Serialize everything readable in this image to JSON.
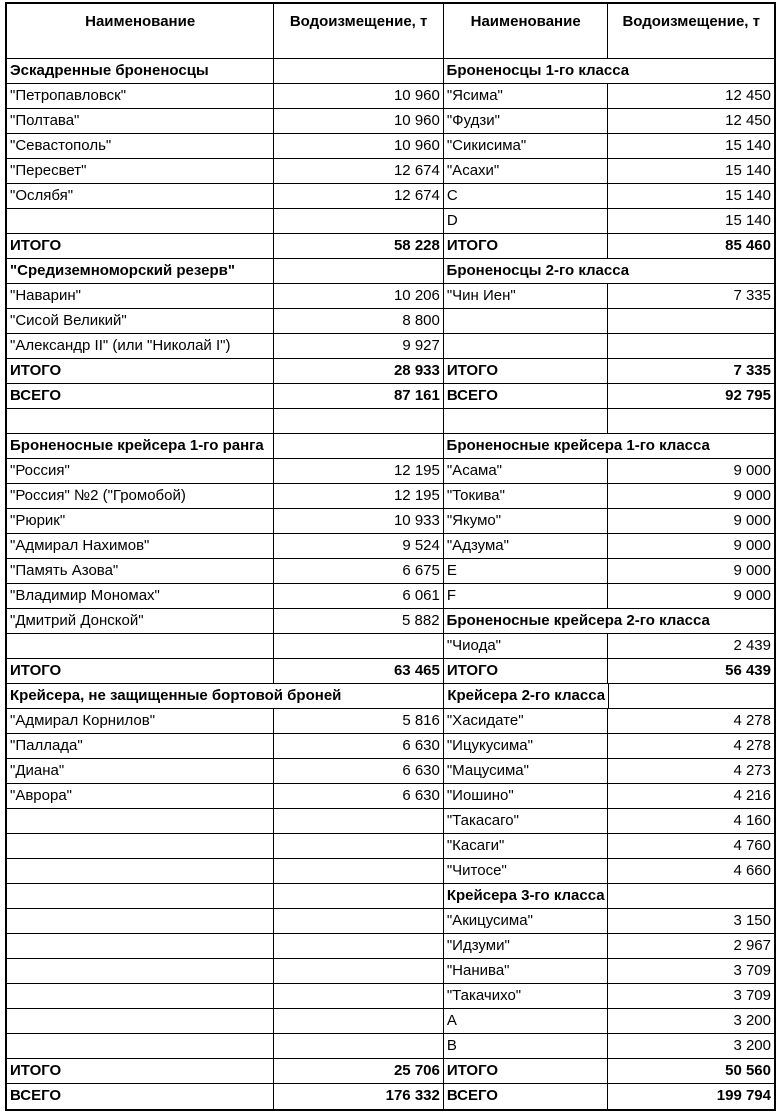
{
  "header": [
    "Наименование",
    "Водоизмещение, т",
    "Наименование",
    "Водоизмещение, т"
  ],
  "rows": [
    {
      "l": "Эскадренные броненосцы",
      "lv": "",
      "r": "Броненосцы 1-го класса",
      "rv": "",
      "lb": true,
      "rb": true
    },
    {
      "l": "\"Петропавловск\"",
      "lv": "10 960",
      "r": "\"Ясима\"",
      "rv": "12 450"
    },
    {
      "l": "\"Полтава\"",
      "lv": "10 960",
      "r": "\"Фудзи\"",
      "rv": "12 450"
    },
    {
      "l": "\"Севастополь\"",
      "lv": "10 960",
      "r": "\"Сикисима\"",
      "rv": "15 140"
    },
    {
      "l": "\"Пересвет\"",
      "lv": "12 674",
      "r": "\"Асахи\"",
      "rv": "15 140"
    },
    {
      "l": "\"Ослябя\"",
      "lv": "12 674",
      "r": "C",
      "rv": "15 140"
    },
    {
      "l": "",
      "lv": "",
      "r": "D",
      "rv": "15 140"
    },
    {
      "l": "ИТОГО",
      "lv": "58 228",
      "r": "ИТОГО",
      "rv": "85 460",
      "lb": true,
      "rb": true
    },
    {
      "l": "\"Средиземноморский резерв\"",
      "lv": "",
      "r": "Броненосцы 2-го класса",
      "rv": "",
      "lb": true,
      "rb": true
    },
    {
      "l": "\"Наварин\"",
      "lv": "10 206",
      "r": "\"Чин Иен\"",
      "rv": "7 335"
    },
    {
      "l": "\"Сисой Великий\"",
      "lv": "8 800",
      "r": "",
      "rv": ""
    },
    {
      "l": "\"Александр II\" (или \"Николай I\")",
      "lv": "9 927",
      "r": "",
      "rv": ""
    },
    {
      "l": "ИТОГО",
      "lv": "28 933",
      "r": "ИТОГО",
      "rv": "7 335",
      "lb": true,
      "rb": true
    },
    {
      "l": "ВСЕГО",
      "lv": "87 161",
      "r": "ВСЕГО",
      "rv": "92 795",
      "lb": true,
      "rb": true
    },
    {
      "l": "",
      "lv": "",
      "r": "",
      "rv": ""
    },
    {
      "l": "Броненосные крейсера 1-го ранга",
      "lv": "",
      "r": "Броненосные крейсера 1-го класса",
      "rv": "",
      "lb": true,
      "rb": true
    },
    {
      "l": "\"Россия\"",
      "lv": "12 195",
      "r": "\"Асама\"",
      "rv": "9 000"
    },
    {
      "l": "\"Россия\" №2 (\"Громобой)",
      "lv": "12 195",
      "r": "\"Токива\"",
      "rv": "9 000"
    },
    {
      "l": "\"Рюрик\"",
      "lv": "10 933",
      "r": "\"Якумо\"",
      "rv": "9 000"
    },
    {
      "l": "\"Адмирал Нахимов\"",
      "lv": "9 524",
      "r": "\"Адзума\"",
      "rv": "9 000"
    },
    {
      "l": "\"Память Азова\"",
      "lv": "6 675",
      "r": "E",
      "rv": "9 000"
    },
    {
      "l": "\"Владимир Мономах\"",
      "lv": "6 061",
      "r": "F",
      "rv": "9 000"
    },
    {
      "l": "\"Дмитрий Донской\"",
      "lv": "5 882",
      "r": "Броненосные крейсера 2-го класса",
      "rv": "",
      "rb": true
    },
    {
      "l": "",
      "lv": "",
      "r": "\"Чиода\"",
      "rv": "2 439"
    },
    {
      "l": "ИТОГО",
      "lv": "63 465",
      "r": "ИТОГО",
      "rv": "56 439",
      "lb": true,
      "rb": true
    },
    {
      "l": "Крейсера, не защищенные бортовой броней",
      "lv": "",
      "r": "Крейсера 2-го класса",
      "rv": "",
      "lb": true,
      "rb": true
    },
    {
      "l": "\"Адмирал Корнилов\"",
      "lv": "5 816",
      "r": "\"Хасидате\"",
      "rv": "4 278"
    },
    {
      "l": "\"Паллада\"",
      "lv": "6 630",
      "r": "\"Ицукусима\"",
      "rv": "4 278"
    },
    {
      "l": "\"Диана\"",
      "lv": "6 630",
      "r": "\"Мацусима\"",
      "rv": "4 273"
    },
    {
      "l": "\"Аврора\"",
      "lv": "6 630",
      "r": "\"Иошино\"",
      "rv": "4 216"
    },
    {
      "l": "",
      "lv": "",
      "r": "\"Такасаго\"",
      "rv": "4 160"
    },
    {
      "l": "",
      "lv": "",
      "r": "\"Касаги\"",
      "rv": "4 760"
    },
    {
      "l": "",
      "lv": "",
      "r": "\"Читосе\"",
      "rv": "4 660"
    },
    {
      "l": "",
      "lv": "",
      "r": "Крейсера 3-го класса",
      "rv": "",
      "rb": true
    },
    {
      "l": "",
      "lv": "",
      "r": "\"Акицусима\"",
      "rv": "3 150"
    },
    {
      "l": "",
      "lv": "",
      "r": "\"Идзуми\"",
      "rv": "2 967"
    },
    {
      "l": "",
      "lv": "",
      "r": "\"Нанива\"",
      "rv": "3 709"
    },
    {
      "l": "",
      "lv": "",
      "r": "\"Такачихо\"",
      "rv": "3 709"
    },
    {
      "l": "",
      "lv": "",
      "r": "A",
      "rv": "3 200"
    },
    {
      "l": "",
      "lv": "",
      "r": "B",
      "rv": "3 200"
    },
    {
      "l": "ИТОГО",
      "lv": "25 706",
      "r": "ИТОГО",
      "rv": "50 560",
      "lb": true,
      "rb": true
    },
    {
      "l": "ВСЕГО",
      "lv": "176 332",
      "r": "ВСЕГО",
      "rv": "199 794",
      "lb": true,
      "rb": true
    }
  ]
}
